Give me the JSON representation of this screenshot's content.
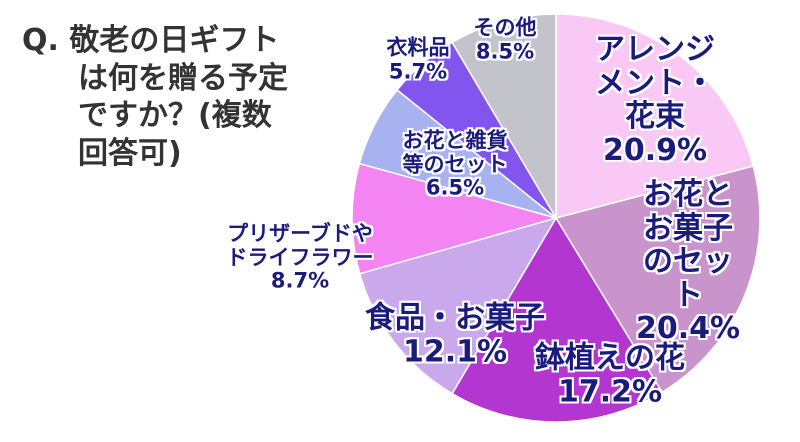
{
  "chart_data": {
    "type": "pie",
    "title": "Q. 敬老の日ギフト\nは何を贈る予定\nですか？(複数\n回答可)",
    "categories": [
      "アレンジ\nメント・花束",
      "お花とお菓子\nのセット",
      "鉢植えの花",
      "食品・お菓子",
      "プリザーブドや\nドライフラワー",
      "お花と雑貨\n等のセット",
      "衣料品",
      "その他"
    ],
    "values": [
      20.9,
      20.4,
      17.2,
      12.1,
      8.7,
      6.5,
      5.7,
      8.5
    ],
    "value_labels": [
      "20.9%",
      "20.4%",
      "17.2%",
      "12.1%",
      "8.7%",
      "6.5%",
      "5.7%",
      "8.5%"
    ],
    "colors": [
      "#f9c8f4",
      "#c994cc",
      "#b236cf",
      "#c9a8ec",
      "#f384f2",
      "#a9b2f0",
      "#8355ef",
      "#c3c3cb"
    ]
  }
}
